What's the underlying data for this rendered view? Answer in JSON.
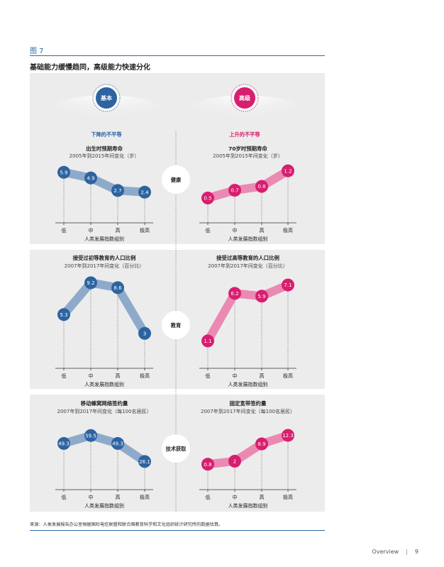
{
  "figure_label": "图 7",
  "figure_title": "基础能力缓慢趋同，高级能力快速分化",
  "source_note": "来源：人类发展报告办公室根据国际电信联盟和联合国教育科学和文化组织统计研究所的数据估算。",
  "footer": {
    "section": "Overview",
    "page": "9"
  },
  "colors": {
    "basic": "#2d63a0",
    "basic_band": "#8eaacb",
    "advanced": "#d81e6e",
    "advanced_band": "#ea8ab3",
    "panel_bg": "#ececec",
    "accent_blue": "#2b6aa8"
  },
  "columns": {
    "basic": {
      "label": "基本",
      "subtitle": "下降的不平等"
    },
    "advanced": {
      "label": "高级",
      "subtitle": "上升的不平等"
    }
  },
  "chart_data": [
    {
      "type": "line",
      "row": "健康",
      "column": "basic",
      "title": "出生时预期寿命",
      "subtitle": "2005年到2015年间变化（岁）",
      "categories": [
        "低",
        "中",
        "高",
        "极高"
      ],
      "values": [
        5.9,
        4.9,
        2.7,
        2.4
      ],
      "xlabel": "人类发展指数组别",
      "ylim": [
        0,
        6.5
      ]
    },
    {
      "type": "line",
      "row": "健康",
      "column": "advanced",
      "title": "70岁时预期寿命",
      "subtitle": "2005年到2015年间变化（岁）",
      "categories": [
        "低",
        "中",
        "高",
        "极高"
      ],
      "values": [
        0.5,
        0.7,
        0.8,
        1.2
      ],
      "xlabel": "人类发展指数组别",
      "ylim": [
        0.3,
        1.25
      ]
    },
    {
      "type": "line",
      "row": "教育",
      "column": "basic",
      "title": "接受过初等教育的人口比例",
      "subtitle": "2007年到2017年间变化（百分比）",
      "categories": [
        "低",
        "中",
        "高",
        "极高"
      ],
      "values": [
        5.3,
        9.2,
        8.6,
        3.0
      ],
      "xlabel": "人类发展指数组别",
      "ylim": [
        1.5,
        9.5
      ]
    },
    {
      "type": "line",
      "row": "教育",
      "column": "advanced",
      "title": "接受过高等教育的人口比例",
      "subtitle": "2007年到2017年间变化（百分比）",
      "categories": [
        "低",
        "中",
        "高",
        "极高"
      ],
      "values": [
        1.1,
        6.2,
        5.9,
        7.1
      ],
      "xlabel": "人类发展指数组别",
      "ylim": [
        0.6,
        7.6
      ]
    },
    {
      "type": "line",
      "row": "技术获取",
      "column": "basic",
      "title": "移动蜂窝网络签约量",
      "subtitle": "2007年到2017年间变化（每100名居民）",
      "categories": [
        "低",
        "中",
        "高",
        "极高"
      ],
      "values": [
        49.3,
        59.5,
        49.3,
        26.1
      ],
      "xlabel": "人类发展指数组别",
      "ylim": [
        20,
        62
      ]
    },
    {
      "type": "line",
      "row": "技术获取",
      "column": "advanced",
      "title": "固定宽带签约量",
      "subtitle": "2007年到2017年间变化（每100名居民）",
      "categories": [
        "低",
        "中",
        "高",
        "极高"
      ],
      "values": [
        0.8,
        2.0,
        8.9,
        12.3
      ],
      "xlabel": "人类发展指数组别",
      "ylim": [
        0,
        13
      ]
    }
  ]
}
